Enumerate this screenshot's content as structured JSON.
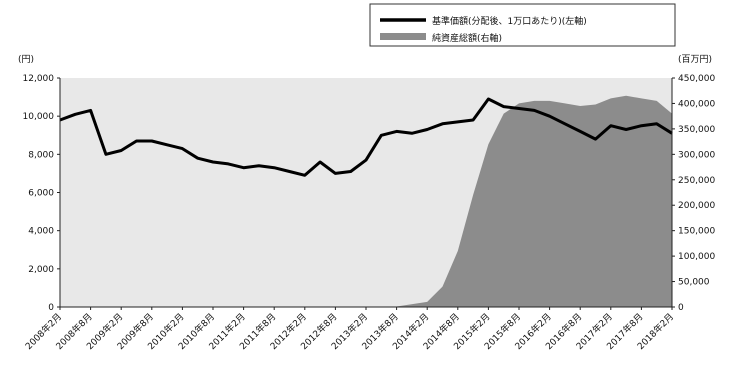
{
  "chart_data": {
    "type": "line",
    "left_unit": "(円)",
    "right_unit": "(百万円)",
    "legend": {
      "line_label": "基準価額(分配後、1万口あたり)(左軸)",
      "area_label": "純資産総額(右軸)",
      "placement": "top-right"
    },
    "y_left_ticks": [
      "12,000",
      "10,000",
      "8,000",
      "6,000",
      "4,000",
      "2,000",
      "0"
    ],
    "y_right_ticks": [
      "450,000",
      "400,000",
      "350,000",
      "300,000",
      "250,000",
      "200,000",
      "150,000",
      "100,000",
      "50,000",
      "0"
    ],
    "ylim_left": [
      0,
      12000
    ],
    "ylim_right": [
      0,
      450000
    ],
    "x_tick_labels": [
      "2008年2月",
      "2008年8月",
      "2009年2月",
      "2009年8月",
      "2010年2月",
      "2010年8月",
      "2011年2月",
      "2011年8月",
      "2012年2月",
      "2012年8月",
      "2013年2月",
      "2013年8月",
      "2014年2月",
      "2014年8月",
      "2015年2月",
      "2015年8月",
      "2016年2月",
      "2016年8月",
      "2017年2月",
      "2017年8月",
      "2018年2月"
    ],
    "colors": {
      "line": "#000000",
      "area": "#8c8c8c",
      "plot_bg": "#e8e8e8"
    },
    "series": [
      {
        "name": "基準価額(分配後、1万口あたり)(左軸)",
        "axis": "left",
        "x": [
          "2008-02",
          "2008-05",
          "2008-08",
          "2008-11",
          "2009-02",
          "2009-05",
          "2009-08",
          "2009-11",
          "2010-02",
          "2010-05",
          "2010-08",
          "2010-11",
          "2011-02",
          "2011-05",
          "2011-08",
          "2011-11",
          "2012-02",
          "2012-05",
          "2012-08",
          "2012-11",
          "2013-02",
          "2013-05",
          "2013-08",
          "2013-11",
          "2014-02",
          "2014-05",
          "2014-08",
          "2014-11",
          "2015-02",
          "2015-05",
          "2015-08",
          "2015-11",
          "2016-02",
          "2016-05",
          "2016-08",
          "2016-11",
          "2017-02",
          "2017-05",
          "2017-08",
          "2017-11",
          "2018-02"
        ],
        "values": [
          9800,
          10100,
          10300,
          8000,
          8200,
          8700,
          8700,
          8500,
          8300,
          7800,
          7600,
          7500,
          7300,
          7400,
          7300,
          7100,
          6900,
          7600,
          7000,
          7100,
          7700,
          9000,
          9200,
          9100,
          9300,
          9600,
          9700,
          9800,
          10900,
          10500,
          10400,
          10300,
          10000,
          9600,
          9200,
          8800,
          9500,
          9300,
          9500,
          9600,
          9100
        ]
      },
      {
        "name": "純資産総額(右軸)",
        "axis": "right",
        "x": [
          "2008-02",
          "2013-08",
          "2014-02",
          "2014-05",
          "2014-08",
          "2014-11",
          "2015-02",
          "2015-05",
          "2015-08",
          "2015-11",
          "2016-02",
          "2016-05",
          "2016-08",
          "2016-11",
          "2017-02",
          "2017-05",
          "2017-08",
          "2017-11",
          "2018-02"
        ],
        "values": [
          0,
          1000,
          10000,
          40000,
          110000,
          220000,
          320000,
          380000,
          400000,
          405000,
          405000,
          400000,
          395000,
          398000,
          410000,
          415000,
          410000,
          405000,
          380000
        ]
      }
    ]
  }
}
